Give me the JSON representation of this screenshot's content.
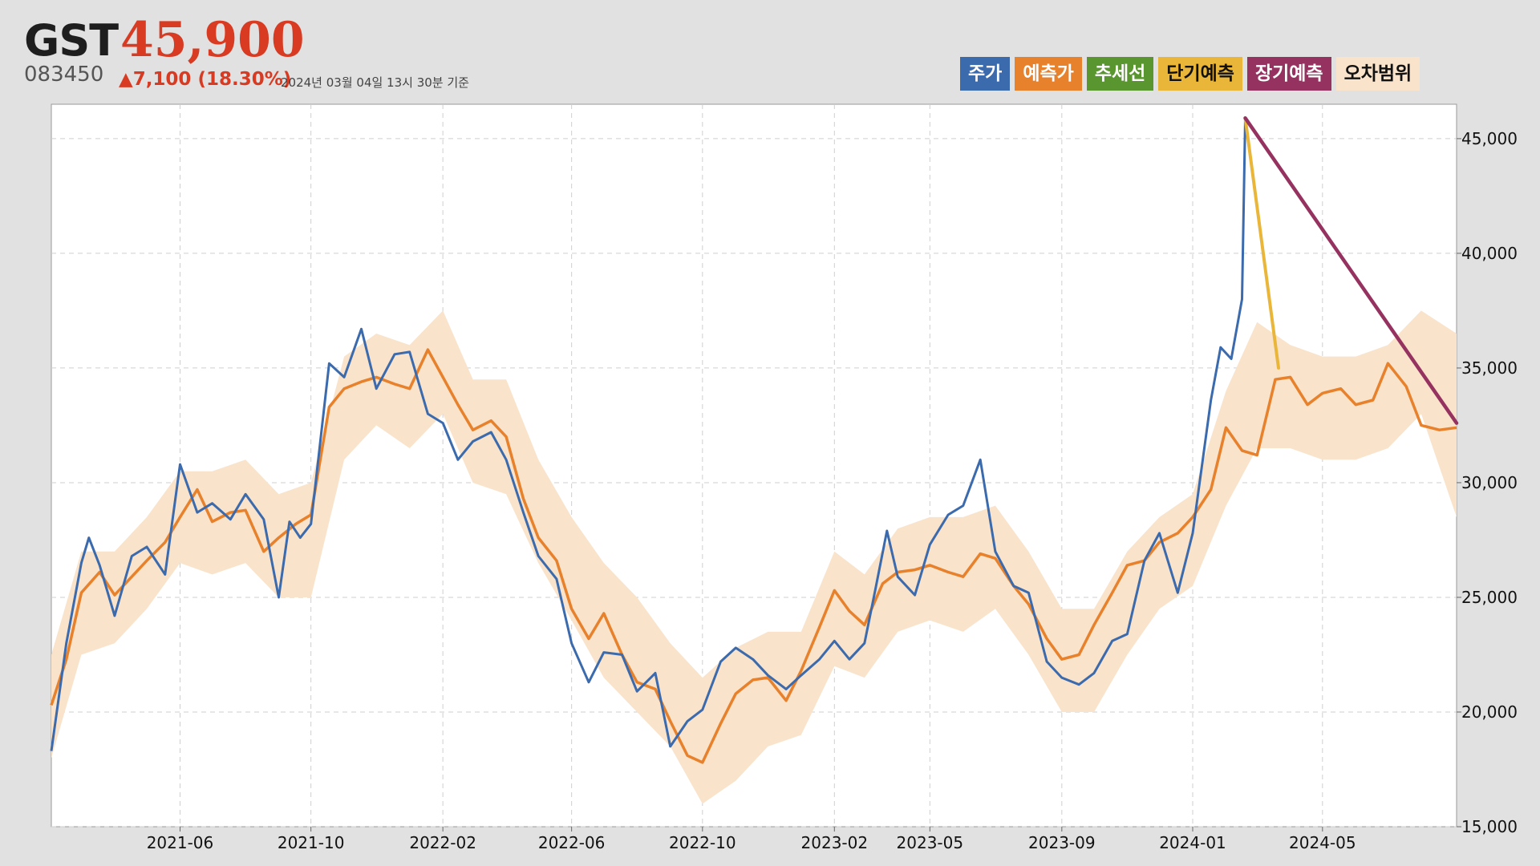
{
  "header": {
    "ticker": "GST",
    "price": "45,900",
    "code": "083450",
    "change": "▲7,100 (18.30%)",
    "asof": "2024년 03월 04일 13시 30분 기준"
  },
  "legend": [
    {
      "label": "주가",
      "bg": "#3b6aad",
      "fg": "#ffffff"
    },
    {
      "label": "예측가",
      "bg": "#e8812b",
      "fg": "#ffffff"
    },
    {
      "label": "추세선",
      "bg": "#5a962f",
      "fg": "#ffffff"
    },
    {
      "label": "단기예측",
      "bg": "#e9b63a",
      "fg": "#111111"
    },
    {
      "label": "장기예측",
      "bg": "#963260",
      "fg": "#ffffff"
    },
    {
      "label": "오차범위",
      "bg": "#f9e3cb",
      "fg": "#111111"
    }
  ],
  "colors": {
    "price": "#3b6aad",
    "forecast": "#e8812b",
    "band": "#f9e3cb",
    "short_term": "#e9b63a",
    "long_term": "#963260",
    "grid": "#cfcfcf",
    "plot_bg": "#ffffff"
  },
  "chart_data": {
    "type": "line",
    "x_type": "date",
    "xlim": [
      "2021-02-15",
      "2024-09-17"
    ],
    "ylim": [
      15000,
      46500
    ],
    "y_ticks": [
      15000,
      20000,
      25000,
      30000,
      35000,
      40000,
      45000
    ],
    "y_tick_labels": [
      "15,000",
      "20,000",
      "25,000",
      "30,000",
      "35,000",
      "40,000",
      "45,000"
    ],
    "x_ticks": [
      "2021-06-15",
      "2021-10-15",
      "2022-02-15",
      "2022-06-15",
      "2022-10-15",
      "2023-02-15",
      "2023-05-15",
      "2023-09-15",
      "2024-01-15",
      "2024-05-15"
    ],
    "x_tick_labels": [
      "2021-06",
      "2021-10",
      "2022-02",
      "2022-06",
      "2022-10",
      "2023-02",
      "2023-05",
      "2023-09",
      "2024-01",
      "2024-05"
    ],
    "grid": true,
    "legend_position": "top-right",
    "series": [
      {
        "name": "주가",
        "x": [
          "2021-02-15",
          "2021-03-01",
          "2021-03-15",
          "2021-03-22",
          "2021-04-01",
          "2021-04-15",
          "2021-05-01",
          "2021-05-15",
          "2021-06-01",
          "2021-06-15",
          "2021-07-01",
          "2021-07-15",
          "2021-08-01",
          "2021-08-15",
          "2021-09-01",
          "2021-09-15",
          "2021-09-25",
          "2021-10-05",
          "2021-10-15",
          "2021-11-01",
          "2021-11-15",
          "2021-12-01",
          "2021-12-15",
          "2022-01-01",
          "2022-01-15",
          "2022-02-01",
          "2022-02-15",
          "2022-03-01",
          "2022-03-15",
          "2022-04-01",
          "2022-04-15",
          "2022-05-01",
          "2022-05-15",
          "2022-06-01",
          "2022-06-15",
          "2022-07-01",
          "2022-07-15",
          "2022-08-01",
          "2022-08-15",
          "2022-09-01",
          "2022-09-15",
          "2022-10-01",
          "2022-10-15",
          "2022-11-01",
          "2022-11-15",
          "2022-12-01",
          "2022-12-15",
          "2023-01-01",
          "2023-01-15",
          "2023-02-01",
          "2023-02-15",
          "2023-03-01",
          "2023-03-15",
          "2023-03-25",
          "2023-04-05",
          "2023-04-15",
          "2023-05-01",
          "2023-05-15",
          "2023-06-01",
          "2023-06-15",
          "2023-07-01",
          "2023-07-15",
          "2023-08-01",
          "2023-08-15",
          "2023-09-01",
          "2023-09-15",
          "2023-10-01",
          "2023-10-15",
          "2023-11-01",
          "2023-11-15",
          "2023-12-01",
          "2023-12-15",
          "2024-01-01",
          "2024-01-15",
          "2024-02-01",
          "2024-02-10",
          "2024-02-20",
          "2024-03-01",
          "2024-03-04"
        ],
        "y": [
          18300,
          23000,
          26500,
          27600,
          26400,
          24200,
          26800,
          27200,
          26000,
          30800,
          28700,
          29100,
          28400,
          29500,
          28400,
          25000,
          28300,
          27600,
          28200,
          35200,
          34600,
          36700,
          34100,
          35600,
          35700,
          33000,
          32600,
          31000,
          31800,
          32200,
          31000,
          28700,
          26800,
          25800,
          23000,
          21300,
          22600,
          22500,
          20900,
          21700,
          18500,
          19600,
          20100,
          22200,
          22800,
          22300,
          21600,
          21000,
          21600,
          22300,
          23100,
          22300,
          23000,
          25300,
          27900,
          25900,
          25100,
          27300,
          28600,
          29000,
          31000,
          27000,
          25500,
          25200,
          22200,
          21500,
          21200,
          21700,
          23100,
          23400,
          26600,
          27800,
          25200,
          27800,
          33600,
          35900,
          35400,
          38000,
          45900
        ]
      },
      {
        "name": "예측가",
        "x": [
          "2021-02-15",
          "2021-03-01",
          "2021-03-15",
          "2021-04-01",
          "2021-04-15",
          "2021-05-01",
          "2021-05-15",
          "2021-06-01",
          "2021-06-15",
          "2021-07-01",
          "2021-07-15",
          "2021-08-01",
          "2021-08-15",
          "2021-09-01",
          "2021-09-15",
          "2021-10-01",
          "2021-10-15",
          "2021-11-01",
          "2021-11-15",
          "2021-12-01",
          "2021-12-15",
          "2022-01-01",
          "2022-01-15",
          "2022-02-01",
          "2022-02-15",
          "2022-03-01",
          "2022-03-15",
          "2022-04-01",
          "2022-04-15",
          "2022-05-01",
          "2022-05-15",
          "2022-06-01",
          "2022-06-15",
          "2022-07-01",
          "2022-07-15",
          "2022-08-01",
          "2022-08-15",
          "2022-09-01",
          "2022-09-15",
          "2022-10-01",
          "2022-10-15",
          "2022-11-01",
          "2022-11-15",
          "2022-12-01",
          "2022-12-15",
          "2023-01-01",
          "2023-01-15",
          "2023-02-01",
          "2023-02-15",
          "2023-03-01",
          "2023-03-15",
          "2023-04-01",
          "2023-04-15",
          "2023-05-01",
          "2023-05-15",
          "2023-06-01",
          "2023-06-15",
          "2023-07-01",
          "2023-07-15",
          "2023-08-01",
          "2023-08-15",
          "2023-09-01",
          "2023-09-15",
          "2023-10-01",
          "2023-10-15",
          "2023-11-01",
          "2023-11-15",
          "2023-12-01",
          "2023-12-15",
          "2024-01-01",
          "2024-01-15",
          "2024-02-01",
          "2024-02-15",
          "2024-03-01",
          "2024-03-15",
          "2024-04-01",
          "2024-04-15",
          "2024-05-01",
          "2024-05-15",
          "2024-06-01",
          "2024-06-15",
          "2024-07-01",
          "2024-07-15",
          "2024-08-01",
          "2024-08-15",
          "2024-09-01",
          "2024-09-17"
        ],
        "y": [
          20300,
          22300,
          25200,
          26100,
          25100,
          25900,
          26600,
          27400,
          28500,
          29700,
          28300,
          28700,
          28800,
          27000,
          27600,
          28200,
          28600,
          33300,
          34100,
          34400,
          34600,
          34300,
          34100,
          35800,
          34600,
          33400,
          32300,
          32700,
          32000,
          29300,
          27600,
          26600,
          24500,
          23200,
          24300,
          22500,
          21300,
          21000,
          19600,
          18100,
          17800,
          19500,
          20800,
          21400,
          21500,
          20500,
          21800,
          23700,
          25300,
          24400,
          23800,
          25600,
          26100,
          26200,
          26400,
          26100,
          25900,
          26900,
          26700,
          25500,
          24700,
          23200,
          22300,
          22500,
          23800,
          25200,
          26400,
          26600,
          27400,
          27800,
          28500,
          29700,
          32400,
          31400,
          31200,
          34500,
          34600,
          33400,
          33900,
          34100,
          33400,
          33600,
          35200,
          34200,
          32500,
          32300,
          32400
        ]
      },
      {
        "name": "오차범위",
        "x": [
          "2021-02-15",
          "2021-03-15",
          "2021-04-15",
          "2021-05-15",
          "2021-06-15",
          "2021-07-15",
          "2021-08-15",
          "2021-09-15",
          "2021-10-15",
          "2021-11-15",
          "2021-12-15",
          "2022-01-15",
          "2022-02-15",
          "2022-03-15",
          "2022-04-15",
          "2022-05-15",
          "2022-06-15",
          "2022-07-15",
          "2022-08-15",
          "2022-09-15",
          "2022-10-15",
          "2022-11-15",
          "2022-12-15",
          "2023-01-15",
          "2023-02-15",
          "2023-03-15",
          "2023-04-15",
          "2023-05-15",
          "2023-06-15",
          "2023-07-15",
          "2023-08-15",
          "2023-09-15",
          "2023-10-15",
          "2023-11-15",
          "2023-12-15",
          "2024-01-15",
          "2024-02-15",
          "2024-03-15",
          "2024-04-15",
          "2024-05-15",
          "2024-06-15",
          "2024-07-15",
          "2024-08-15",
          "2024-09-17"
        ],
        "upper": [
          22500,
          27000,
          27000,
          28500,
          30500,
          30500,
          31000,
          29500,
          30000,
          35500,
          36500,
          36000,
          37500,
          34500,
          34500,
          31000,
          28500,
          26500,
          25000,
          23000,
          21500,
          22800,
          23500,
          23500,
          27000,
          26000,
          28000,
          28500,
          28500,
          29000,
          27000,
          24500,
          24500,
          27000,
          28500,
          29500,
          34000,
          37000,
          36000,
          35500,
          35500,
          36000,
          37500,
          36500
        ],
        "lower": [
          18000,
          22500,
          23000,
          24500,
          26500,
          26000,
          26500,
          25000,
          25000,
          31000,
          32500,
          31500,
          33000,
          30000,
          29500,
          26500,
          24000,
          21500,
          20000,
          18500,
          16000,
          17000,
          18500,
          19000,
          22000,
          21500,
          23500,
          24000,
          23500,
          24500,
          22500,
          20000,
          20000,
          22500,
          24500,
          25500,
          29000,
          31500,
          31500,
          31000,
          31000,
          31500,
          33000,
          28500
        ]
      },
      {
        "name": "단기예측",
        "x": [
          "2024-03-04",
          "2024-04-04"
        ],
        "y": [
          45900,
          35000
        ]
      },
      {
        "name": "장기예측",
        "x": [
          "2024-03-04",
          "2024-09-17"
        ],
        "y": [
          45900,
          32600
        ]
      }
    ]
  }
}
